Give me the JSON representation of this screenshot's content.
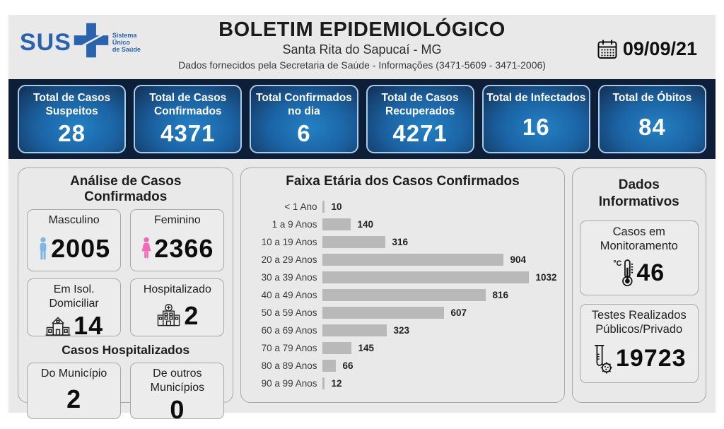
{
  "header": {
    "logo": {
      "text": "SUS",
      "tagline_lines": [
        "Sistema",
        "Único",
        "de Saúde"
      ]
    },
    "title": "BOLETIM EPIDEMIOLÓGICO",
    "subtitle": "Santa Rita do Sapucaí - MG",
    "info": "Dados fornecidos pela Secretaria de Saúde - Informações (3471-5609 - 3471-2006)",
    "date": "09/09/21"
  },
  "stats": [
    {
      "label": "Total de Casos Suspeitos",
      "value": "28"
    },
    {
      "label": "Total de Casos Confirmados",
      "value": "4371"
    },
    {
      "label": "Total Confirmados no dia",
      "value": "6"
    },
    {
      "label": "Total de Casos Recuperados",
      "value": "4271"
    },
    {
      "label": "Total de Infectados",
      "value": "16"
    },
    {
      "label": "Total de Óbitos",
      "value": "84"
    }
  ],
  "analysis": {
    "title": "Análise de Casos Confirmados",
    "cards": [
      {
        "label": "Masculino",
        "value": "2005",
        "icon": "male-icon"
      },
      {
        "label": "Feminino",
        "value": "2366",
        "icon": "female-icon"
      },
      {
        "label": "Em Isol. Domiciliar",
        "value": "14",
        "icon": "house-icon"
      },
      {
        "label": "Hospitalizado",
        "value": "2",
        "icon": "hospital-icon"
      }
    ],
    "hospitalized": {
      "title": "Casos Hospitalizados",
      "cards": [
        {
          "label": "Do Município",
          "value": "2"
        },
        {
          "label": "De outros Municípios",
          "value": "0"
        }
      ]
    }
  },
  "chart_data": {
    "type": "bar",
    "orientation": "horizontal",
    "title": "Faixa Etária dos Casos Confirmados",
    "categories": [
      "< 1 Ano",
      "1 a 9 Anos",
      "10 a 19 Anos",
      "20 a 29 Anos",
      "30 a 39 Anos",
      "40 a 49 Anos",
      "50 a 59 Anos",
      "60 a 69 Anos",
      "70 a 79 Anos",
      "80 a 89 Anos",
      "90 a 99 Anos"
    ],
    "values": [
      10,
      140,
      316,
      904,
      1032,
      816,
      607,
      323,
      145,
      66,
      12
    ],
    "xlim": [
      0,
      1032
    ],
    "data_labels": true,
    "grid": false,
    "bar_color": "#b9b9b9"
  },
  "informative": {
    "title": "Dados Informativos",
    "cards": [
      {
        "label": "Casos em Monitoramento",
        "value": "46",
        "icon": "thermometer-icon"
      },
      {
        "label": "Testes Realizados Públicos/Privado",
        "value": "19723",
        "icon": "test-tube-icon"
      }
    ]
  },
  "colors": {
    "brand_blue": "#2a63ad",
    "band_background": "#0c1e38",
    "card_gradient_center": "#2381c4",
    "card_gradient_edge": "#132f54",
    "card_border": "#a7cce7",
    "page_background": "#e9e9e9",
    "bar_color": "#b9b9b9",
    "male_icon": "#7db6e9",
    "female_icon": "#f269b5"
  }
}
